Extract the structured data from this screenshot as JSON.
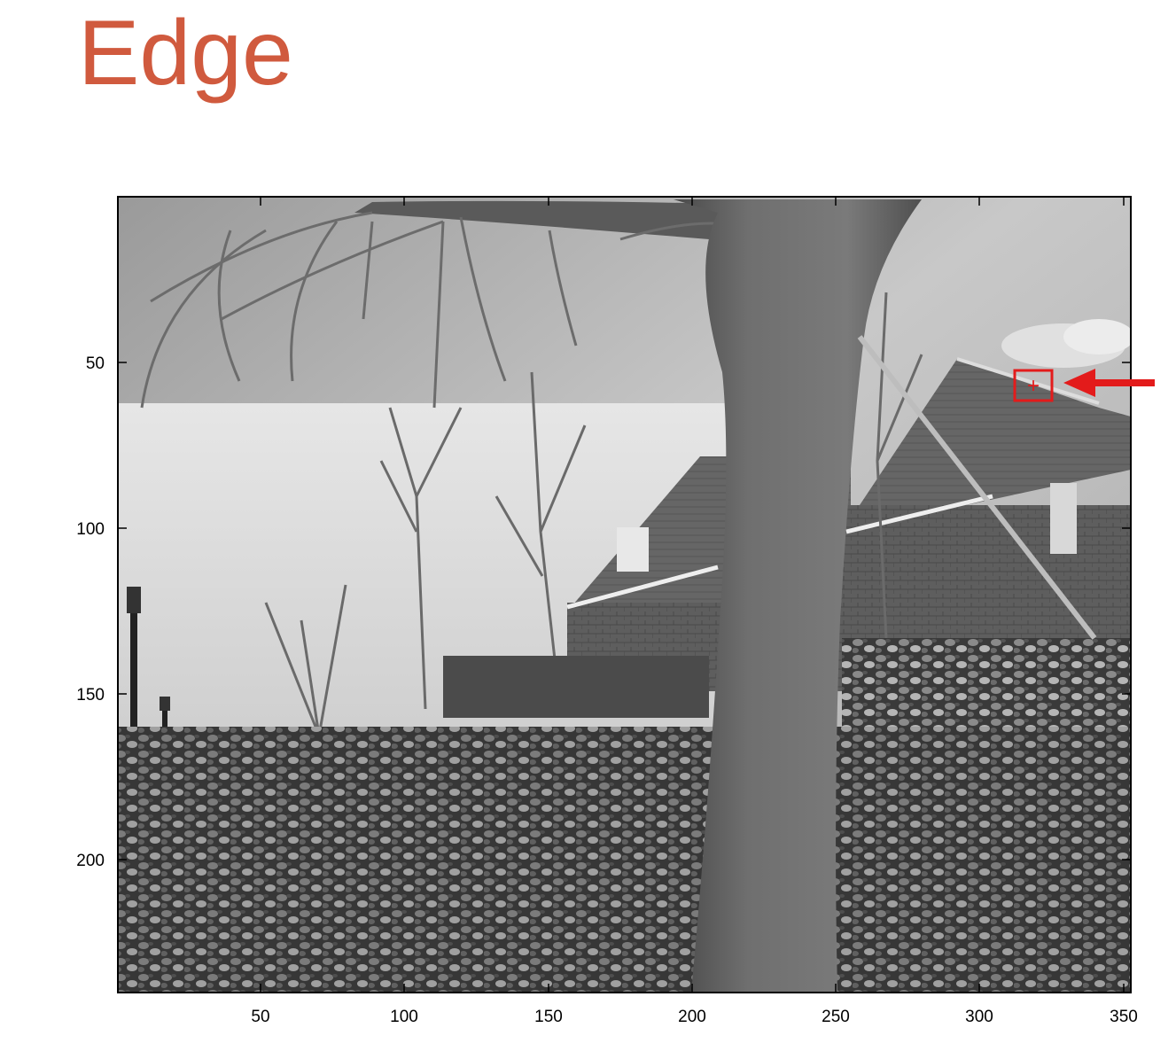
{
  "slide": {
    "title": "Edge",
    "title_color": "#d05a3e",
    "highlight_color": "#e31b1b"
  },
  "plot": {
    "x_ticks": [
      "50",
      "100",
      "150",
      "200",
      "250",
      "300",
      "350"
    ],
    "y_ticks": [
      "50",
      "100",
      "150",
      "200"
    ],
    "x_range": [
      1,
      352
    ],
    "y_range": [
      1,
      240
    ],
    "y_direction": "down",
    "image": "grayscale photo of tree trunk, bare branches, brick houses and flower bed",
    "marker": {
      "x": 320,
      "y": 57,
      "symbol": "+"
    }
  }
}
